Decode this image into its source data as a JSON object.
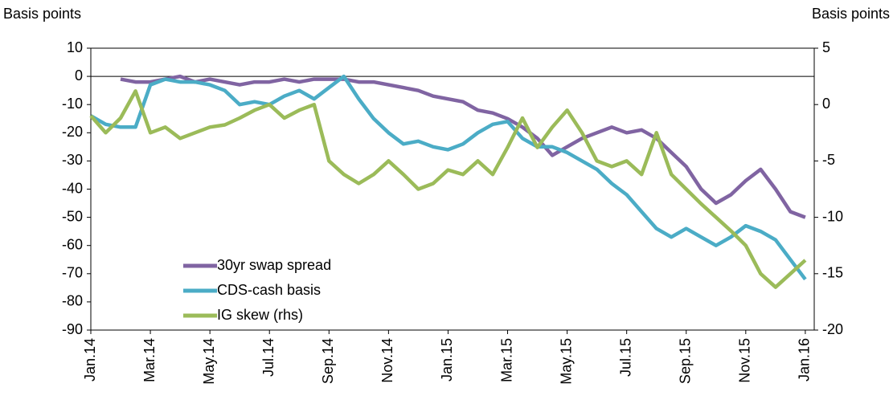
{
  "chart_data": {
    "type": "line",
    "y_label": "Basis points",
    "y2_label": "Basis points",
    "categories": [
      "Jan.14",
      null,
      null,
      null,
      "Mar.14",
      null,
      null,
      null,
      "May.14",
      null,
      null,
      null,
      "Jul.14",
      null,
      null,
      null,
      "Sep.14",
      null,
      null,
      null,
      "Nov.14",
      null,
      null,
      null,
      "Jan.15",
      null,
      null,
      null,
      "Mar.15",
      null,
      null,
      null,
      "May.15",
      null,
      null,
      null,
      "Jul.15",
      null,
      null,
      null,
      "Sep.15",
      null,
      null,
      null,
      "Nov.15",
      null,
      null,
      null,
      "Jan.16"
    ],
    "series": [
      {
        "name": "30yr swap spread",
        "color": "#8064a2",
        "values": [
          null,
          null,
          -1,
          -2,
          -2,
          -1,
          0,
          -2,
          -1,
          -2,
          -3,
          -2,
          -2,
          -1,
          -2,
          -1,
          -1,
          -1,
          -2,
          -2,
          -3,
          -4,
          -5,
          -7,
          -8,
          -9,
          -12,
          -13,
          -15,
          -18,
          -22,
          -28,
          -25,
          -22,
          -20,
          -18,
          -20,
          -19,
          -22,
          -27,
          -32,
          -40,
          -45,
          -42,
          -37,
          -33,
          -40,
          -48,
          -50
        ]
      },
      {
        "name": "CDS-cash basis",
        "color": "#4bacc6",
        "values": [
          -14,
          -17,
          -18,
          -18,
          -3,
          -1,
          -2,
          -2,
          -3,
          -5,
          -10,
          -9,
          -10,
          -7,
          -5,
          -8,
          -4,
          0,
          -8,
          -15,
          -20,
          -24,
          -23,
          -25,
          -26,
          -24,
          -20,
          -17,
          -16,
          -22,
          -25,
          -25,
          -27,
          -30,
          -33,
          -38,
          -42,
          -48,
          -54,
          -57,
          -54,
          -57,
          -60,
          -57,
          -53,
          -55,
          -58,
          -65,
          -72
        ]
      },
      {
        "name": "IG skew (rhs)",
        "color": "#9bbb59",
        "axis": "y2",
        "values": [
          -1,
          -2.5,
          -1.2,
          1.2,
          -2.5,
          -2,
          -3,
          -2.5,
          -2,
          -1.8,
          -1.2,
          -0.5,
          0,
          -1.2,
          -0.5,
          0,
          -5,
          -6.2,
          -7,
          -6.2,
          -5,
          -6.2,
          -7.5,
          -7,
          -5.8,
          -6.2,
          -5,
          -6.2,
          -3.8,
          -1.2,
          -3.8,
          -2,
          -0.5,
          -2.5,
          -5,
          -5.5,
          -5,
          -6.2,
          -2.5,
          -6.2,
          -7.5,
          -8.8,
          -10,
          -11.2,
          -12.5,
          -15,
          -16.2,
          -15,
          -13.8
        ]
      }
    ],
    "ylim": [
      -90,
      10
    ],
    "yticks": [
      10,
      0,
      -10,
      -20,
      -30,
      -40,
      -50,
      -60,
      -70,
      -80,
      -90
    ],
    "y2lim": [
      -20,
      5
    ],
    "y2ticks": [
      5,
      0,
      -5,
      -10,
      -15,
      -20
    ],
    "legend": "lower-left"
  }
}
